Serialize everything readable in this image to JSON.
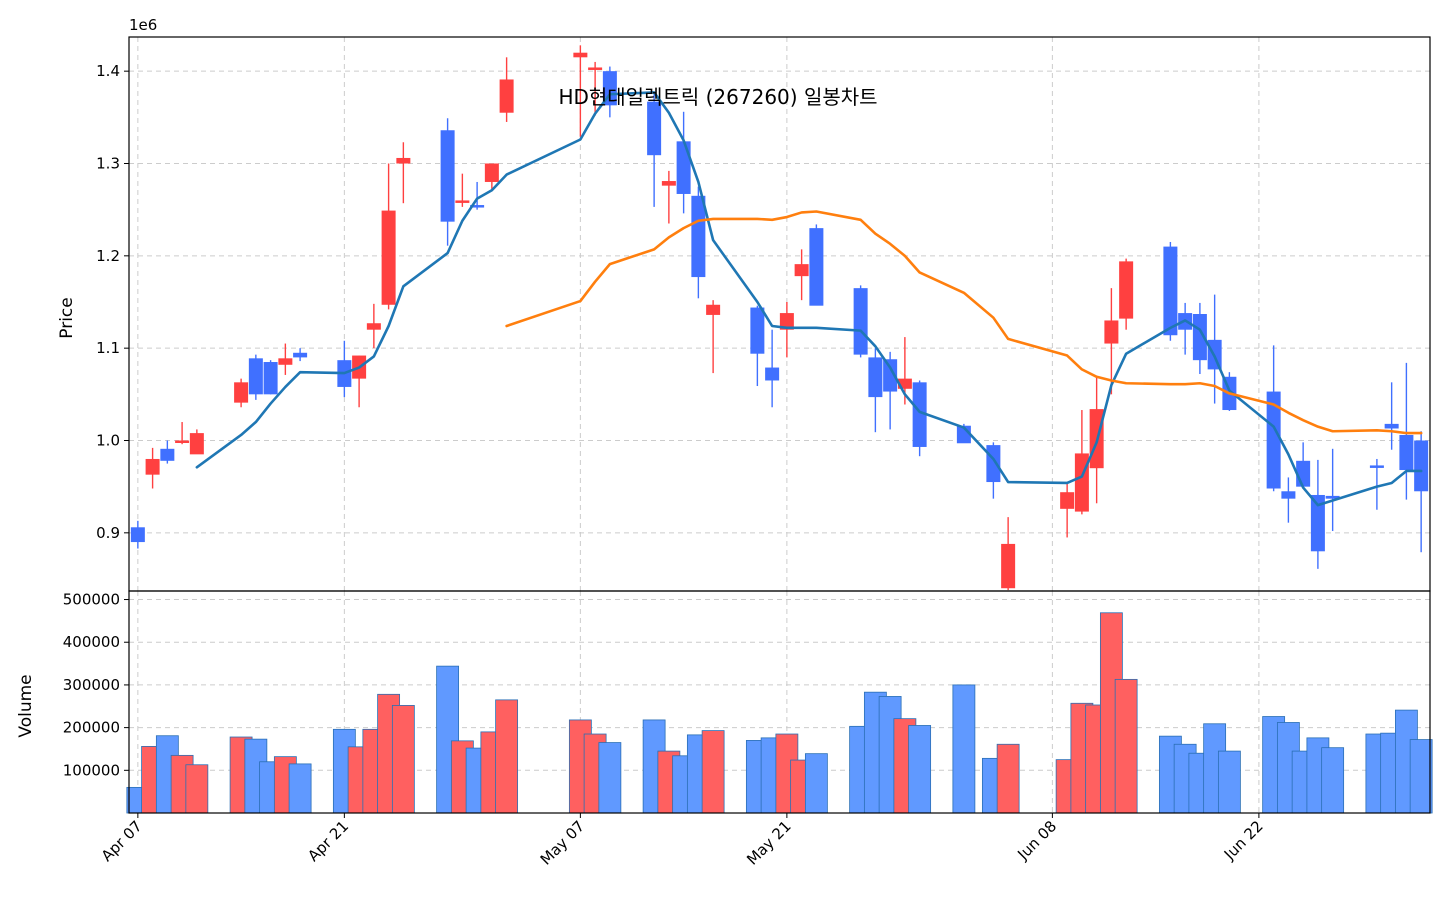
{
  "chart_data": [
    {
      "type": "candlestick",
      "title": "HD현대일렉트릭 (267260) 일봉차트",
      "ylabel": "Price",
      "offset_label": "1e6",
      "ylim": [
        0.837,
        1.437
      ],
      "yticks": [
        0.9,
        1.0,
        1.1,
        1.2,
        1.3,
        1.4
      ],
      "ytick_labels": [
        "0.9",
        "1.0",
        "1.1",
        "1.2",
        "1.3",
        "1.4"
      ],
      "up_color": "#ff4040",
      "down_color": "#4070ff",
      "grid": true,
      "x": [
        "2025-04-07",
        "2025-04-08",
        "2025-04-09",
        "2025-04-10",
        "2025-04-11",
        "2025-04-14",
        "2025-04-15",
        "2025-04-16",
        "2025-04-17",
        "2025-04-18",
        "2025-04-21",
        "2025-04-22",
        "2025-04-23",
        "2025-04-24",
        "2025-04-25",
        "2025-04-28",
        "2025-04-29",
        "2025-04-30",
        "2025-05-01",
        "2025-05-02",
        "2025-05-07",
        "2025-05-08",
        "2025-05-09",
        "2025-05-12",
        "2025-05-13",
        "2025-05-14",
        "2025-05-15",
        "2025-05-16",
        "2025-05-19",
        "2025-05-20",
        "2025-05-21",
        "2025-05-22",
        "2025-05-23",
        "2025-05-26",
        "2025-05-27",
        "2025-05-28",
        "2025-05-29",
        "2025-05-30",
        "2025-06-02",
        "2025-06-04",
        "2025-06-05",
        "2025-06-09",
        "2025-06-10",
        "2025-06-11",
        "2025-06-12",
        "2025-06-13",
        "2025-06-16",
        "2025-06-17",
        "2025-06-18",
        "2025-06-19",
        "2025-06-20",
        "2025-06-23",
        "2025-06-24",
        "2025-06-25",
        "2025-06-26",
        "2025-06-27",
        "2025-06-30",
        "2025-07-01",
        "2025-07-02",
        "2025-07-03"
      ],
      "open": [
        0.906,
        0.963,
        0.991,
        0.999,
        0.985,
        1.041,
        1.089,
        1.085,
        1.082,
        1.095,
        1.087,
        1.067,
        1.12,
        1.147,
        1.3,
        1.336,
        1.26,
        1.255,
        1.28,
        1.355,
        1.415,
        1.404,
        1.4,
        1.367,
        1.276,
        1.324,
        1.265,
        1.136,
        1.144,
        1.079,
        1.12,
        1.178,
        1.23,
        1.165,
        1.09,
        1.088,
        1.056,
        1.063,
        1.016,
        0.995,
        0.84,
        0.926,
        0.923,
        0.97,
        1.105,
        1.132,
        1.21,
        1.138,
        1.137,
        1.109,
        1.069,
        1.053,
        0.945,
        0.978,
        0.941,
        0.94,
        0.973,
        1.018,
        1.006,
        1.0
      ],
      "high": [
        0.913,
        0.992,
        1.0,
        1.02,
        1.012,
        1.067,
        1.093,
        1.087,
        1.105,
        1.1,
        1.108,
        1.092,
        1.148,
        1.3,
        1.323,
        1.349,
        1.289,
        1.28,
        1.296,
        1.415,
        1.428,
        1.41,
        1.405,
        1.375,
        1.292,
        1.356,
        1.275,
        1.152,
        1.146,
        1.12,
        1.15,
        1.207,
        1.234,
        1.168,
        1.1,
        1.096,
        1.112,
        1.065,
        1.018,
        0.998,
        0.917,
        0.955,
        1.033,
        1.07,
        1.165,
        1.197,
        1.215,
        1.149,
        1.149,
        1.158,
        1.074,
        1.103,
        0.96,
        0.998,
        0.979,
        0.991,
        0.98,
        1.063,
        1.084,
        1.01
      ],
      "low": [
        0.883,
        0.948,
        0.975,
        0.996,
        0.986,
        1.036,
        1.044,
        1.05,
        1.071,
        1.086,
        1.047,
        1.036,
        1.1,
        1.142,
        1.257,
        1.211,
        1.253,
        1.25,
        1.272,
        1.345,
        1.329,
        1.352,
        1.35,
        1.253,
        1.235,
        1.246,
        1.154,
        1.073,
        1.059,
        1.036,
        1.09,
        1.152,
        1.147,
        1.09,
        1.009,
        1.012,
        1.039,
        0.983,
        0.998,
        0.937,
        0.838,
        0.895,
        0.92,
        0.932,
        1.05,
        1.12,
        1.108,
        1.093,
        1.072,
        1.04,
        1.032,
        0.945,
        0.911,
        0.95,
        0.861,
        0.902,
        0.925,
        0.99,
        0.936,
        0.879
      ],
      "close": [
        0.89,
        0.98,
        0.978,
        1.0,
        1.008,
        1.063,
        1.05,
        1.05,
        1.089,
        1.09,
        1.058,
        1.092,
        1.127,
        1.249,
        1.306,
        1.237,
        1.26,
        1.253,
        1.3,
        1.391,
        1.42,
        1.404,
        1.363,
        1.309,
        1.281,
        1.267,
        1.177,
        1.147,
        1.094,
        1.065,
        1.138,
        1.191,
        1.146,
        1.093,
        1.047,
        1.053,
        1.067,
        0.993,
        0.997,
        0.955,
        0.888,
        0.944,
        0.986,
        1.034,
        1.13,
        1.194,
        1.114,
        1.12,
        1.087,
        1.077,
        1.033,
        0.948,
        0.937,
        0.95,
        0.88,
        0.937,
        0.972,
        1.013,
        0.968,
        0.945
      ],
      "series": [
        {
          "name": "",
          "color": "#1f77b4",
          "values": [
            null,
            null,
            null,
            null,
            0.971,
            1.006,
            1.02,
            1.04,
            1.058,
            1.074,
            1.073,
            1.079,
            1.091,
            1.124,
            1.167,
            1.203,
            1.238,
            1.262,
            1.271,
            1.288,
            1.326,
            1.354,
            1.375,
            1.377,
            1.355,
            1.325,
            1.28,
            1.217,
            1.15,
            1.124,
            1.122,
            1.122,
            1.122,
            1.119,
            1.102,
            1.079,
            1.05,
            1.031,
            1.014,
            0.98,
            0.955,
            0.954,
            0.961,
            0.998,
            1.06,
            1.094,
            1.122,
            1.13,
            1.12,
            1.091,
            1.054,
            1.015,
            0.985,
            0.949,
            0.93,
            0.935,
            0.95,
            0.954,
            0.967,
            0.967
          ]
        },
        {
          "name": "",
          "color": "#ff7f0e",
          "values": [
            null,
            null,
            null,
            null,
            null,
            null,
            null,
            null,
            null,
            null,
            null,
            null,
            null,
            null,
            null,
            null,
            null,
            null,
            null,
            1.124,
            1.151,
            1.172,
            1.191,
            1.207,
            1.22,
            1.23,
            1.238,
            1.24,
            1.24,
            1.239,
            1.242,
            1.247,
            1.248,
            1.239,
            1.224,
            1.213,
            1.2,
            1.182,
            1.16,
            1.133,
            1.11,
            1.092,
            1.077,
            1.069,
            1.065,
            1.062,
            1.061,
            1.061,
            1.062,
            1.059,
            1.051,
            1.039,
            1.03,
            1.022,
            1.015,
            1.01,
            1.011,
            1.01,
            1.008,
            1.008
          ]
        }
      ]
    },
    {
      "type": "bar",
      "ylabel": "Volume",
      "ylim": [
        0,
        520000
      ],
      "yticks": [
        100000,
        200000,
        300000,
        400000,
        500000
      ],
      "ytick_labels": [
        "100000",
        "200000",
        "300000",
        "400000",
        "500000"
      ],
      "up_color": "#ff6060",
      "down_color": "#6099ff",
      "edge_color": "#2a6fb5",
      "grid": true,
      "values": [
        60000,
        156000,
        181000,
        135000,
        113000,
        178000,
        173000,
        120000,
        132000,
        115000,
        196000,
        155000,
        196000,
        278000,
        252000,
        344000,
        169000,
        152000,
        190000,
        265000,
        218000,
        185000,
        165000,
        218000,
        145000,
        134000,
        183000,
        193000,
        170000,
        176000,
        185000,
        124000,
        139000,
        203000,
        283000,
        273000,
        221000,
        205000,
        300000,
        128000,
        161000,
        125000,
        257000,
        253000,
        469000,
        313000,
        180000,
        161000,
        140000,
        209000,
        145000,
        226000,
        212000,
        145000,
        176000,
        153000,
        185000,
        187000,
        241000,
        172000
      ],
      "xtick_labels": [
        "Apr 07",
        "Apr 21",
        "May 07",
        "May 21",
        "Jun 08",
        "Jun 22"
      ],
      "xtick_dates": [
        "2025-04-07",
        "2025-04-21",
        "2025-05-07",
        "2025-05-21",
        "2025-06-08",
        "2025-06-22"
      ]
    }
  ]
}
